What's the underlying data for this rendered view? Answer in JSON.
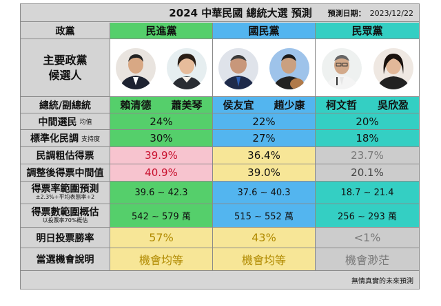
{
  "header": {
    "title": "2024 中華民國 總統大選  預測",
    "date_label": "預測日期：",
    "date": "2023/12/22"
  },
  "party_row": {
    "label": "政黨",
    "parties": [
      "民進黨",
      "國民黨",
      "民眾黨"
    ]
  },
  "candidates_row": {
    "label_line1": "主要政黨",
    "label_line2": "候選人"
  },
  "names_row": {
    "label": "總統/副總統",
    "names": [
      "賴清德",
      "蕭美琴",
      "侯友宜",
      "趙少康",
      "柯文哲",
      "吳欣盈"
    ]
  },
  "rows": {
    "median": {
      "label": "中間選民",
      "sub": "均值",
      "values": [
        "24%",
        "22%",
        "20%"
      ]
    },
    "standard": {
      "label": "標準化民調",
      "sub": "支持度",
      "values": [
        "30%",
        "27%",
        "18%"
      ]
    },
    "rough": {
      "label": "民調粗估得票",
      "values": [
        "39.9%",
        "36.4%",
        "23.7%"
      ]
    },
    "adjusted": {
      "label": "調整後得票中間值",
      "values": [
        "40.9%",
        "39.0%",
        "20.1%"
      ]
    },
    "range": {
      "label": "得票率範圍預測",
      "sub": "±2.3%÷平均表態率÷2",
      "values": [
        "39.6 ~ 42.3",
        "37.6 ~ 40.3",
        "18.7 ~ 21.4"
      ]
    },
    "votes": {
      "label": "得票數範圍概估",
      "sub": "以投票率70%概估",
      "values": [
        "542 ~ 579 萬",
        "515 ~ 552 萬",
        "256 ~ 293 萬"
      ]
    },
    "winrate": {
      "label": "明日投票勝率",
      "values": [
        "57%",
        "43%",
        "<1%"
      ]
    },
    "chance": {
      "label": "當選機會說明",
      "values": [
        "機會均等",
        "機會均等",
        "機會渺茫"
      ]
    }
  },
  "footer": {
    "note": "無情真實的未來預測"
  },
  "colors": {
    "dpp": "#55cf6b",
    "kmt": "#53b5ef",
    "tpp": "#34cfc3",
    "pink": "#f7c4cf",
    "yellow": "#f7e697",
    "gray": "#cccccc",
    "red_text": "#c8102e"
  }
}
